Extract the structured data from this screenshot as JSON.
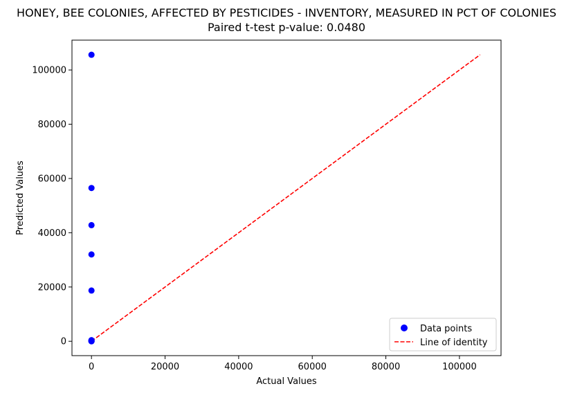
{
  "chart_data": {
    "type": "scatter",
    "title": "HONEY, BEE COLONIES, AFFECTED BY PESTICIDES - INVENTORY, MEASURED IN PCT OF COLONIES",
    "subtitle": "Paired t-test p-value: 0.0480",
    "xlabel": "Actual Values",
    "ylabel": "Predicted Values",
    "xlim": [
      -5300,
      111300
    ],
    "ylim": [
      -5300,
      111000
    ],
    "xticks": [
      0,
      20000,
      40000,
      60000,
      80000,
      100000
    ],
    "yticks": [
      0,
      20000,
      40000,
      60000,
      80000,
      100000
    ],
    "grid": false,
    "legend_position": "bottom-right",
    "series": [
      {
        "name": "Data points",
        "kind": "scatter",
        "color": "#0000ff",
        "points": [
          [
            1,
            105600
          ],
          [
            1,
            56500
          ],
          [
            1,
            42800
          ],
          [
            1,
            32000
          ],
          [
            1,
            18700
          ],
          [
            1,
            400
          ],
          [
            1,
            200
          ],
          [
            1,
            100
          ],
          [
            1,
            50
          ],
          [
            1,
            20
          ],
          [
            1,
            5
          ]
        ]
      },
      {
        "name": "Line of identity",
        "kind": "line",
        "style": "dashed",
        "color": "#ff0000",
        "points": [
          [
            0,
            0
          ],
          [
            105600,
            105600
          ]
        ]
      }
    ]
  }
}
